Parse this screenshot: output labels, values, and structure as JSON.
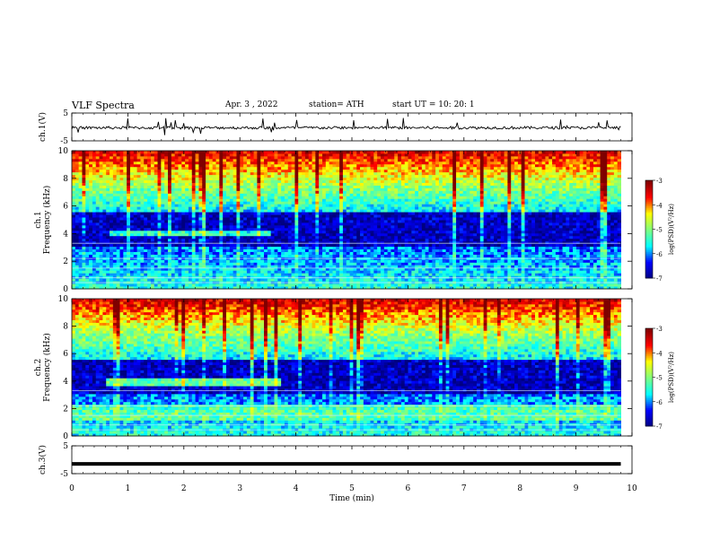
{
  "header": {
    "title": "VLF  Spectra",
    "date": "Apr. 3   , 2022",
    "station": "station= ATH",
    "start": "start  UT  =    10: 20: 1"
  },
  "chart_data": [
    {
      "type": "line",
      "ylabel": "ch.1(V)",
      "xlim": [
        0,
        10
      ],
      "ylim": [
        -5,
        5
      ],
      "yticks": [
        "5",
        "-5"
      ],
      "series": [
        {
          "mean": -0.3,
          "amplitude": 1.0,
          "color": "#000000"
        }
      ]
    },
    {
      "type": "heatmap",
      "ylabel": "ch.1\nFrequency (kHz)",
      "xlim": [
        0,
        10
      ],
      "ylim": [
        0,
        10
      ],
      "data_extent_min": 9.8,
      "yticks": [
        "0",
        "2",
        "4",
        "6",
        "8",
        "10"
      ],
      "colorbar": {
        "label": "log(PSD)(V²/Hz)",
        "range": [
          -7,
          -3
        ],
        "ticks": [
          "-3",
          "-4",
          "-5",
          "-6",
          "-7"
        ]
      }
    },
    {
      "type": "heatmap",
      "ylabel": "ch.2\nFrequency (kHz)",
      "xlim": [
        0,
        10
      ],
      "ylim": [
        0,
        10
      ],
      "data_extent_min": 9.8,
      "yticks": [
        "0",
        "2",
        "4",
        "6",
        "8",
        "10"
      ],
      "colorbar": {
        "label": "log(PSD)(V²/Hz)",
        "range": [
          -7,
          -3
        ],
        "ticks": [
          "-3",
          "-4",
          "-5",
          "-6",
          "-7"
        ]
      }
    },
    {
      "type": "line",
      "ylabel": "ch.3(V)",
      "xlim": [
        0,
        10
      ],
      "ylim": [
        -5,
        5
      ],
      "yticks": [
        "5",
        "-5"
      ],
      "series": [
        {
          "mean": -1.5,
          "amplitude": 0.0,
          "color": "#000000"
        }
      ]
    }
  ],
  "xaxis": {
    "label": "Time  (min)",
    "ticks": [
      "0",
      "1",
      "2",
      "3",
      "4",
      "5",
      "6",
      "7",
      "8",
      "9",
      "10"
    ]
  },
  "colors": {
    "colormap": [
      "#00007f",
      "#0000ff",
      "#00ffff",
      "#7fff7f",
      "#ffff00",
      "#ff0000",
      "#7f0000"
    ]
  }
}
